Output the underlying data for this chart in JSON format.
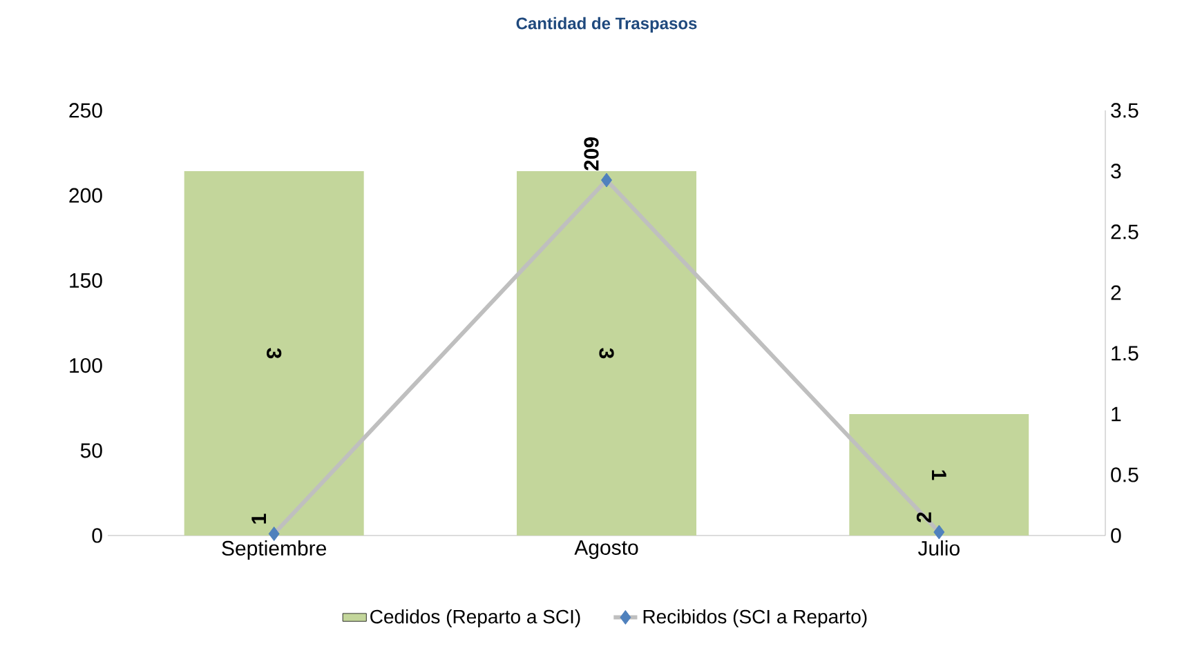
{
  "chart_data": {
    "type": "bar",
    "title": "Cantidad de Traspasos",
    "categories": [
      "Septiembre",
      "Agosto",
      "Julio"
    ],
    "series": [
      {
        "name": "Cedidos (Reparto a SCI)",
        "axis": "y2",
        "color": "#c3d69b",
        "values": [
          3,
          3,
          1
        ]
      },
      {
        "name": "Recibidos (SCI a Reparto)",
        "type": "line",
        "axis": "y",
        "color": "#bfbfbf",
        "marker": "diamond",
        "values": [
          1,
          209,
          2
        ]
      }
    ],
    "ylim": [
      0,
      250
    ],
    "yticks": [
      0,
      50,
      100,
      150,
      200,
      250
    ],
    "y2lim": [
      0,
      3.5
    ],
    "y2ticks": [
      0,
      0.5,
      1,
      1.5,
      2,
      2.5,
      3,
      3.5
    ],
    "data_labels": true,
    "grid": false,
    "legend": "bottom"
  }
}
